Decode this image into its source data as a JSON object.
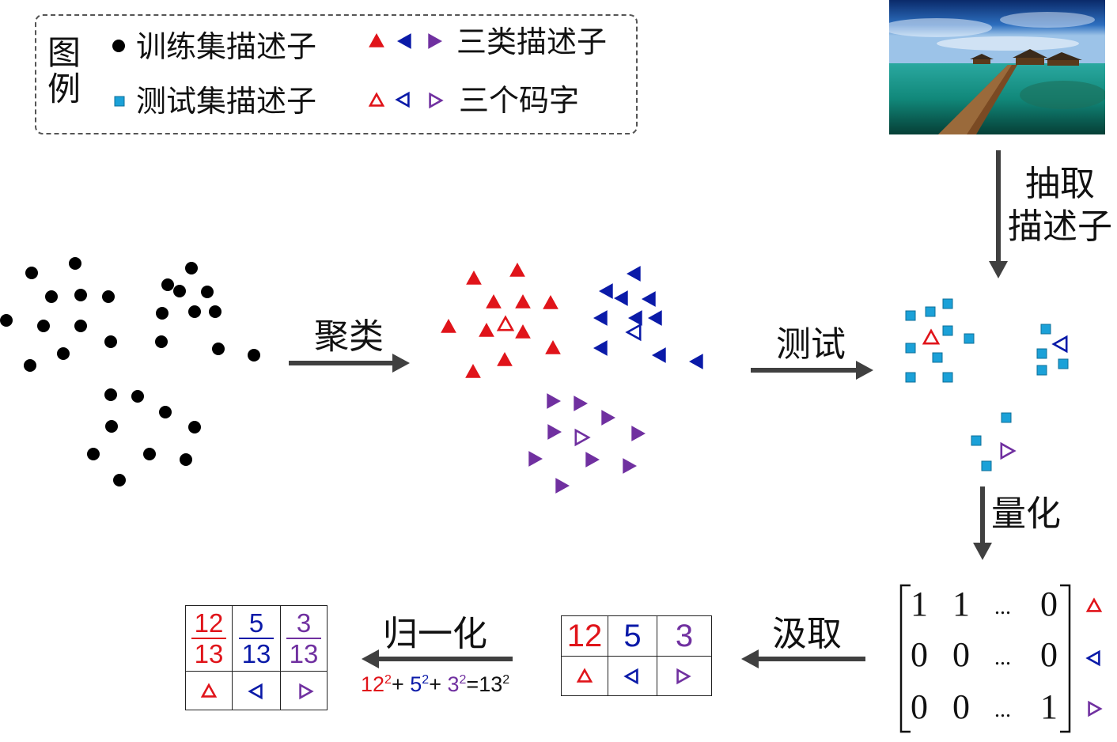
{
  "colors": {
    "train": "#000000",
    "test": "#1ba1d8",
    "red": "#e0141a",
    "blue": "#0a1aa8",
    "purple": "#7030a0",
    "arrow": "#404040"
  },
  "legend": {
    "title": "图例",
    "train_label": "训练集描述子",
    "test_label": "测试集描述子",
    "classes_label": "三类描述子",
    "codewords_label": "三个码字"
  },
  "steps": {
    "extract": "抽取\n描述子",
    "cluster": "聚类",
    "test": "测试",
    "quantize": "量化",
    "pool": "汲取",
    "normalize": "归一化"
  },
  "matrix": {
    "rows": [
      [
        "1",
        "1",
        "...",
        "0"
      ],
      [
        "0",
        "0",
        "...",
        "0"
      ],
      [
        "0",
        "0",
        "...",
        "1"
      ]
    ],
    "row_symbols": [
      "red-up",
      "blue-left",
      "purple-right"
    ]
  },
  "histogram": {
    "counts": [
      "12",
      "5",
      "3"
    ],
    "symbols": [
      "red-up",
      "blue-left",
      "purple-right"
    ]
  },
  "normalized": {
    "numerators": [
      "12",
      "5",
      "3"
    ],
    "denominator": "13",
    "symbols": [
      "red-up",
      "blue-left",
      "purple-right"
    ]
  },
  "equation": {
    "a": "12",
    "b": "5",
    "c": "3",
    "exp": "2",
    "plus": "+",
    "eq": "=13"
  },
  "icons": {
    "photo": "beach-pier-photo",
    "train_marker": "filled-circle-icon",
    "test_marker": "filled-square-icon",
    "class_markers": "filled-triangle-icons",
    "codeword_markers": "outline-triangle-icons"
  }
}
